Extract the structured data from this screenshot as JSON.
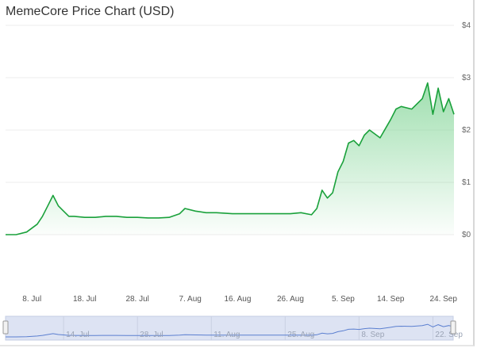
{
  "chart_data": {
    "type": "area",
    "title": "MemeCore Price Chart (USD)",
    "xlabel": "",
    "ylabel": "",
    "ylim": [
      0,
      4
    ],
    "yticks": [
      "$0",
      "$1",
      "$2",
      "$3",
      "$4"
    ],
    "xticks": [
      "8. Jul",
      "18. Jul",
      "28. Jul",
      "7. Aug",
      "16. Aug",
      "26. Aug",
      "5. Sep",
      "14. Sep",
      "24. Sep"
    ],
    "navigator_ticks": [
      "14. Jul",
      "28. Jul",
      "11. Aug",
      "25. Aug",
      "8. Sep",
      "22. Sep"
    ],
    "grid": "horizontal",
    "legend": "none",
    "colors": {
      "line": "#1aa13b",
      "fill_top": "#7fd494",
      "navigator_line": "#5b7fd0",
      "navigator_bg": "#dde3f3"
    },
    "series": [
      {
        "x": [
          "2025-07-03",
          "2025-07-05",
          "2025-07-07",
          "2025-07-09",
          "2025-07-10",
          "2025-07-11",
          "2025-07-12",
          "2025-07-13",
          "2025-07-14",
          "2025-07-15",
          "2025-07-16",
          "2025-07-18",
          "2025-07-20",
          "2025-07-22",
          "2025-07-24",
          "2025-07-26",
          "2025-07-28",
          "2025-07-30",
          "2025-08-01",
          "2025-08-03",
          "2025-08-05",
          "2025-08-06",
          "2025-08-08",
          "2025-08-10",
          "2025-08-12",
          "2025-08-15",
          "2025-08-18",
          "2025-08-21",
          "2025-08-24",
          "2025-08-26",
          "2025-08-28",
          "2025-08-30",
          "2025-08-31",
          "2025-09-01",
          "2025-09-02",
          "2025-09-03",
          "2025-09-04",
          "2025-09-05",
          "2025-09-06",
          "2025-09-07",
          "2025-09-08",
          "2025-09-09",
          "2025-09-10",
          "2025-09-12",
          "2025-09-14",
          "2025-09-15",
          "2025-09-16",
          "2025-09-18",
          "2025-09-20",
          "2025-09-21",
          "2025-09-22",
          "2025-09-23",
          "2025-09-24",
          "2025-09-25",
          "2025-09-26"
        ],
        "values": [
          0.0,
          0.0,
          0.05,
          0.2,
          0.35,
          0.55,
          0.75,
          0.55,
          0.45,
          0.35,
          0.35,
          0.33,
          0.33,
          0.35,
          0.35,
          0.33,
          0.33,
          0.32,
          0.32,
          0.33,
          0.4,
          0.5,
          0.45,
          0.42,
          0.42,
          0.4,
          0.4,
          0.4,
          0.4,
          0.4,
          0.42,
          0.38,
          0.5,
          0.85,
          0.7,
          0.8,
          1.2,
          1.4,
          1.75,
          1.8,
          1.7,
          1.9,
          2.0,
          1.85,
          2.2,
          2.4,
          2.45,
          2.4,
          2.6,
          2.9,
          2.3,
          2.8,
          2.35,
          2.6,
          2.3
        ]
      }
    ]
  }
}
